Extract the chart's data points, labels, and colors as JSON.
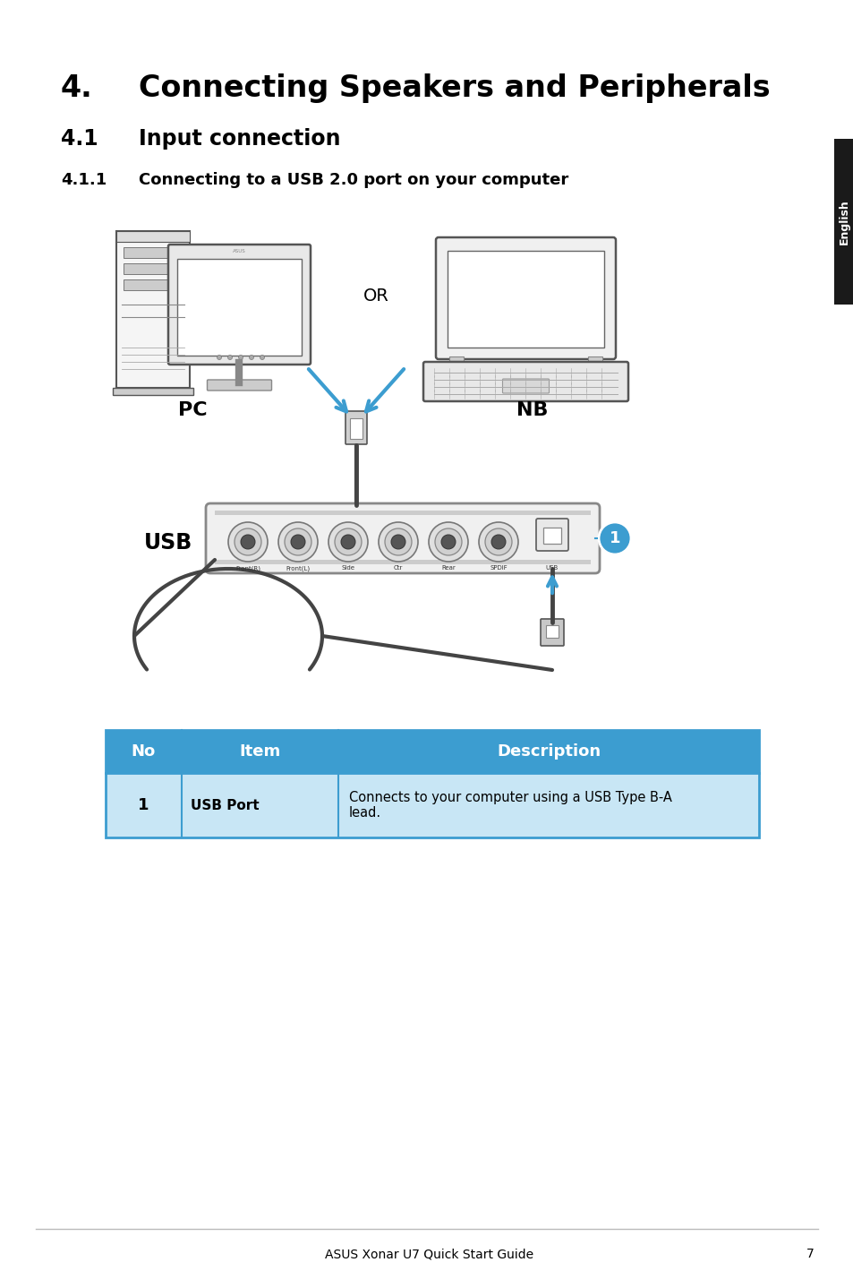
{
  "title_number": "4.",
  "title_text": "Connecting Speakers and Peripherals",
  "section_number": "4.1",
  "section_text": "Input connection",
  "subsection_number": "4.1.1",
  "subsection_text": "Connecting to a USB 2.0 port on your computer",
  "pc_label": "PC",
  "nb_label": "NB",
  "or_label": "OR",
  "usb_label": "USB",
  "table_header_color": "#3c9dd0",
  "table_header_text_color": "#ffffff",
  "table_row_color": "#c8e6f5",
  "table_border_color": "#3c9dd0",
  "table_cols": [
    "No",
    "Item",
    "Description"
  ],
  "table_row_no": "1",
  "table_row_item": "USB Port",
  "table_row_desc": "Connects to your computer using a USB Type B-A\nlead.",
  "footer_text": "ASUS Xonar U7 Quick Start Guide",
  "footer_page": "7",
  "english_tab_color": "#1a1a1a",
  "english_text": "English",
  "background_color": "#ffffff",
  "title_fontsize": 24,
  "section_fontsize": 17,
  "subsection_fontsize": 13,
  "body_fontsize": 11,
  "footer_fontsize": 10,
  "arrow_color": "#3c9dd0",
  "circle1_color": "#3c9dd0"
}
